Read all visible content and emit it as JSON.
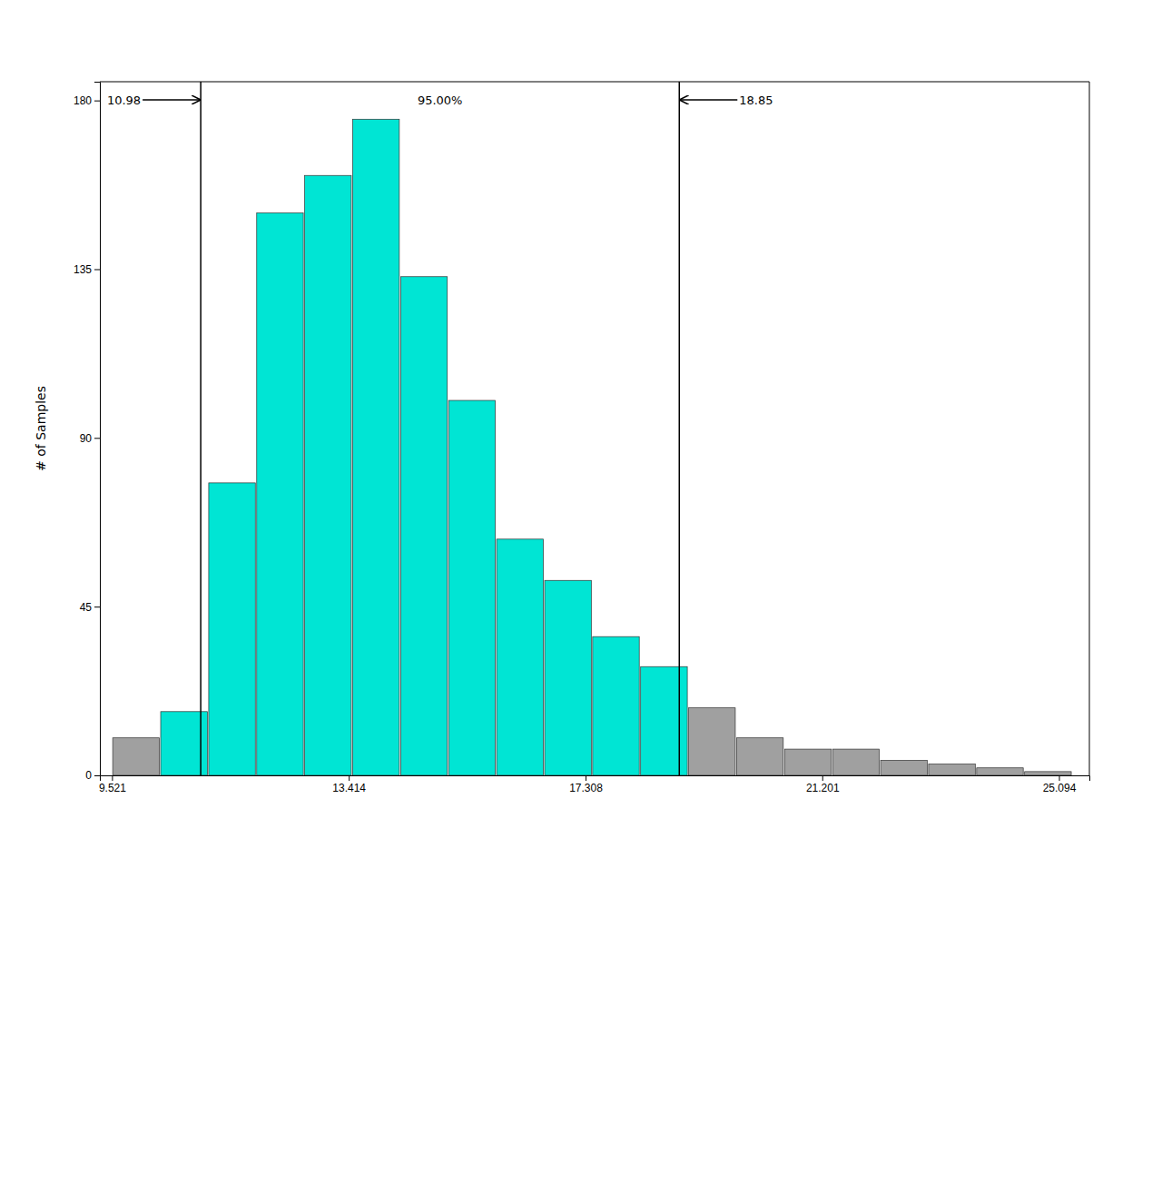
{
  "chart_data": {
    "type": "histogram",
    "title": "",
    "ylabel": "# of Samples",
    "bins": [
      9.521,
      10.31,
      11.1,
      11.889,
      12.678,
      13.467,
      14.257,
      15.046,
      15.835,
      16.625,
      17.414,
      18.203,
      18.993,
      19.782,
      20.571,
      21.361,
      22.15,
      22.939,
      23.729,
      24.518,
      25.3073
    ],
    "values": [
      10,
      17,
      78,
      150,
      160,
      175,
      133,
      100,
      63,
      52,
      37,
      29,
      18,
      10,
      7,
      7,
      4,
      3,
      2,
      1
    ],
    "colors": [
      "#A0A0A0",
      "#00E5D4",
      "#00E5D4",
      "#00E5D4",
      "#00E5D4",
      "#00E5D4",
      "#00E5D4",
      "#00E5D4",
      "#00E5D4",
      "#00E5D4",
      "#00E5D4",
      "#00E5D4",
      "#A0A0A0",
      "#A0A0A0",
      "#A0A0A0",
      "#A0A0A0",
      "#A0A0A0",
      "#A0A0A0",
      "#A0A0A0",
      "#A0A0A0"
    ],
    "xlim": [
      9.321,
      25.594
    ],
    "xticks": [
      9.521,
      13.414,
      17.308,
      21.201,
      25.094
    ],
    "ylim": [
      0,
      185
    ],
    "yticks": [
      0,
      45,
      90,
      135,
      180
    ],
    "reference_lines": [
      {
        "value": 10.98,
        "label": "10.98"
      },
      {
        "value": 18.85,
        "label": "18.85"
      }
    ],
    "annotations": [
      {
        "text": "95.00%"
      }
    ],
    "grid": false
  }
}
